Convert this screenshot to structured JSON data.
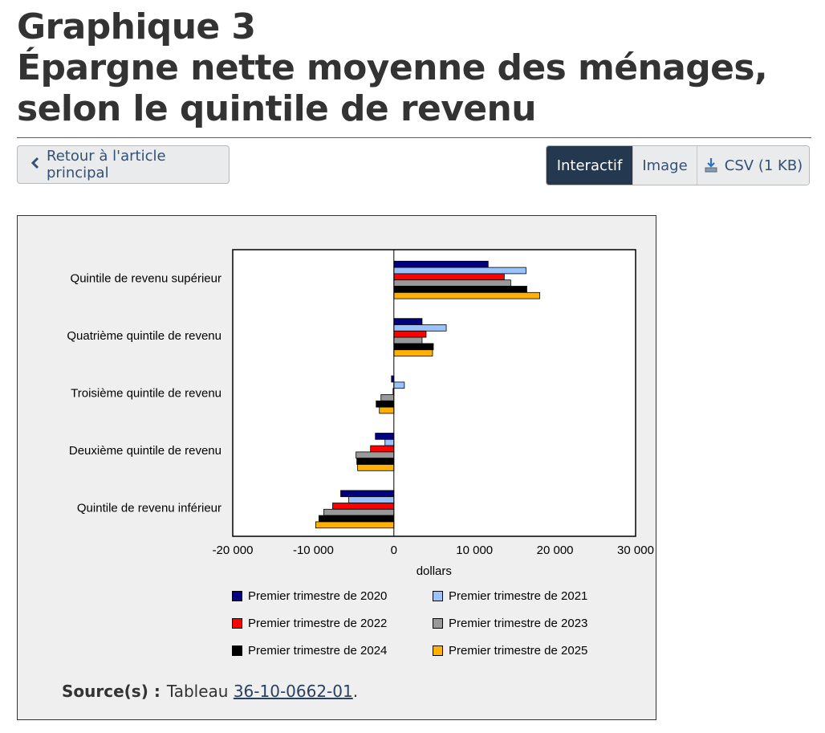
{
  "page": {
    "title_line1": "Graphique 3",
    "title_line2": "Épargne nette moyenne des ménages, selon le quintile de revenu",
    "back_label": "Retour à l'article principal",
    "view_buttons": [
      "Interactif",
      "Image",
      "CSV (1 KB)"
    ],
    "source_label": "Source(s) :",
    "source_text": "Tableau",
    "source_link": "36-10-0662-01",
    "source_end": "."
  },
  "icons": {
    "back": "chevron-left-icon",
    "csv": "download-icon"
  },
  "colors": {
    "title_rule": "#af3c43",
    "active_button": "#243850",
    "button_text": "#335075",
    "chart_background": "#efefef"
  },
  "chart_data": {
    "type": "bar",
    "orientation": "horizontal",
    "xlabel": "dollars",
    "xlim": [
      -20000,
      30000
    ],
    "x_ticks": [
      -20000,
      -10000,
      0,
      10000,
      20000,
      30000
    ],
    "x_tick_labels": [
      "-20 000",
      "-10 000",
      "0",
      "10 000",
      "20 000",
      "30 000"
    ],
    "grid": false,
    "legend_position": "bottom",
    "categories": [
      "Quintile de revenu supérieur",
      "Quatrième quintile de revenu",
      "Troisième quintile de revenu",
      "Deuxième quintile de revenu",
      "Quintile de revenu inférieur"
    ],
    "series": [
      {
        "name": "Premier trimestre de 2020",
        "color": "#000080",
        "values": [
          11700,
          3500,
          -300,
          -2300,
          -6600
        ]
      },
      {
        "name": "Premier trimestre de 2021",
        "color": "#99c2ff",
        "values": [
          16400,
          6500,
          1300,
          -1100,
          -5600
        ]
      },
      {
        "name": "Premier trimestre de 2022",
        "color": "#ff0000",
        "values": [
          13700,
          4000,
          -100,
          -2900,
          -7600
        ]
      },
      {
        "name": "Premier trimestre de 2023",
        "color": "#999999",
        "values": [
          14500,
          3500,
          -1600,
          -4700,
          -8700
        ]
      },
      {
        "name": "Premier trimestre de 2024",
        "color": "#000000",
        "values": [
          16500,
          4900,
          -2200,
          -4600,
          -9300
        ]
      },
      {
        "name": "Premier trimestre de 2025",
        "color": "#ffb000",
        "values": [
          18100,
          4800,
          -1800,
          -4500,
          -9700
        ]
      }
    ]
  }
}
